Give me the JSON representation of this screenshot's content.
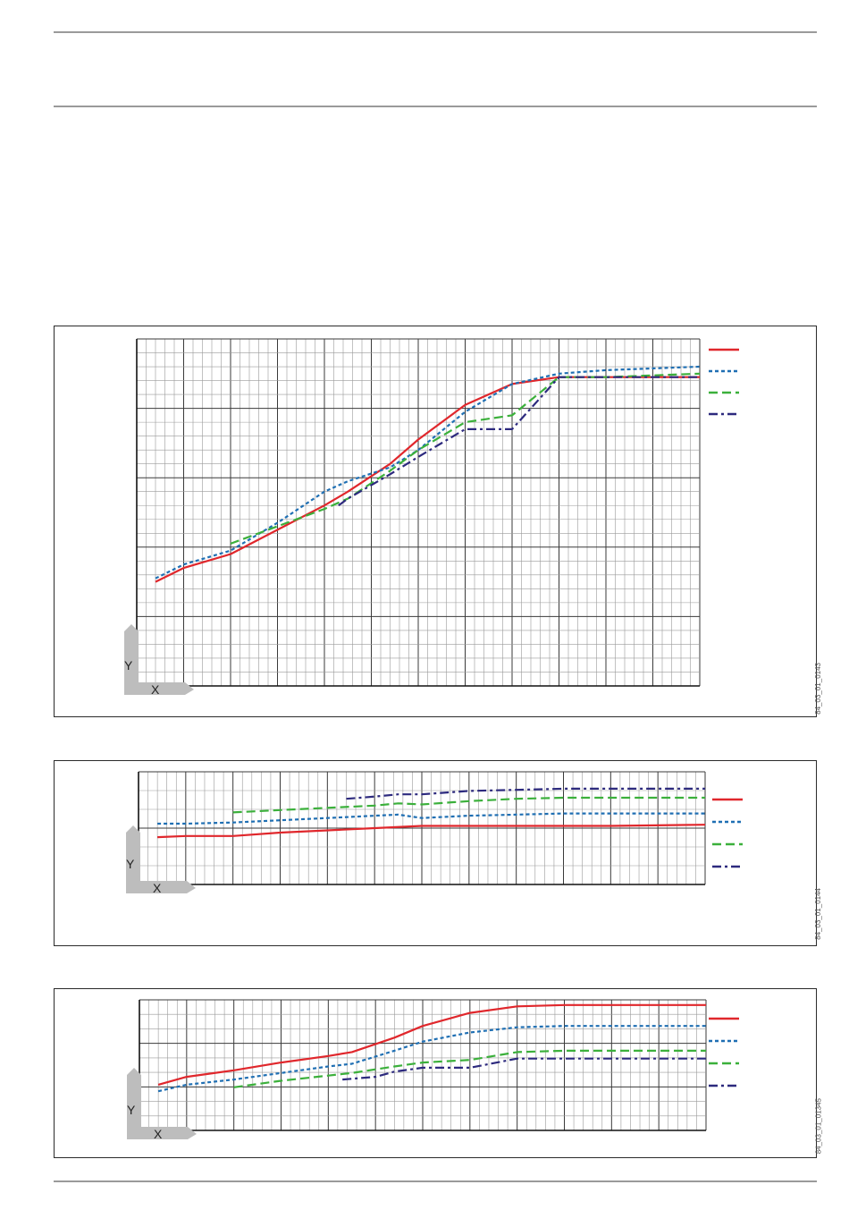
{
  "colors": {
    "series1": "#e0272c",
    "series2": "#1f6fb3",
    "series3": "#3bb03b",
    "series4": "#2d2a7e",
    "grid_minor": "#9a9a9a",
    "grid_major": "#3a3a3a",
    "axis_corner": "#bdbdbd"
  },
  "charts": [
    {
      "axis_x_letter": "X",
      "axis_y_letter": "Y",
      "figure_code": "84_03_01_0143",
      "chart_data": {
        "type": "line",
        "x_range": [
          0,
          12
        ],
        "y_range": [
          0,
          5
        ],
        "grid": true,
        "legend_placement": "right",
        "series": [
          {
            "style": "solid",
            "color_key": "series1",
            "x": [
              0.4,
              1.0,
              2.0,
              3.0,
              4.0,
              4.5,
              5.4,
              6.0,
              7.0,
              8.0,
              9.0,
              10.0,
              12.0
            ],
            "y": [
              1.5,
              1.7,
              1.9,
              2.25,
              2.6,
              2.8,
              3.2,
              3.55,
              4.05,
              4.35,
              4.45,
              4.45,
              4.45
            ]
          },
          {
            "style": "dotted",
            "color_key": "series2",
            "x": [
              0.4,
              1.0,
              2.0,
              3.0,
              4.0,
              4.5,
              5.4,
              6.0,
              7.0,
              8.0,
              9.0,
              10.0,
              12.0
            ],
            "y": [
              1.55,
              1.75,
              1.95,
              2.35,
              2.8,
              2.95,
              3.15,
              3.4,
              3.95,
              4.35,
              4.5,
              4.55,
              4.6
            ]
          },
          {
            "style": "dashed",
            "color_key": "series3",
            "x": [
              2.0,
              3.0,
              4.0,
              4.5,
              5.4,
              6.0,
              7.0,
              8.0,
              9.0,
              10.0,
              12.0
            ],
            "y": [
              2.05,
              2.3,
              2.55,
              2.7,
              3.1,
              3.4,
              3.8,
              3.9,
              4.45,
              4.45,
              4.5
            ]
          },
          {
            "style": "dashdot",
            "color_key": "series4",
            "x": [
              4.3,
              4.5,
              5.4,
              6.0,
              7.0,
              8.0,
              9.0,
              10.0,
              12.0
            ],
            "y": [
              2.6,
              2.7,
              3.05,
              3.3,
              3.7,
              3.7,
              4.45,
              4.45,
              4.45
            ]
          }
        ]
      }
    },
    {
      "axis_x_letter": "X",
      "axis_y_letter": "Y",
      "figure_code": "84_03_01_0144",
      "chart_data": {
        "type": "line",
        "x_range": [
          0,
          12
        ],
        "y_range": [
          0,
          5
        ],
        "grid": true,
        "legend_placement": "right",
        "series": [
          {
            "style": "solid",
            "color_key": "series1",
            "x": [
              0.4,
              1.0,
              2.0,
              3.0,
              4.0,
              5.0,
              6.0,
              7.0,
              8.0,
              9.0,
              10.0,
              12.0
            ],
            "y": [
              2.1,
              2.15,
              2.15,
              2.3,
              2.4,
              2.5,
              2.6,
              2.6,
              2.6,
              2.6,
              2.6,
              2.65
            ]
          },
          {
            "style": "dotted",
            "color_key": "series2",
            "x": [
              0.4,
              1.0,
              2.0,
              3.0,
              4.0,
              5.0,
              5.5,
              6.0,
              7.0,
              8.0,
              9.0,
              10.0,
              12.0
            ],
            "y": [
              2.7,
              2.7,
              2.75,
              2.85,
              2.95,
              3.05,
              3.1,
              2.95,
              3.05,
              3.1,
              3.15,
              3.15,
              3.15
            ]
          },
          {
            "style": "dashed",
            "color_key": "series3",
            "x": [
              2.0,
              3.0,
              4.0,
              5.0,
              5.5,
              6.0,
              7.0,
              8.0,
              9.0,
              10.0,
              12.0
            ],
            "y": [
              3.2,
              3.3,
              3.4,
              3.5,
              3.6,
              3.55,
              3.7,
              3.8,
              3.85,
              3.85,
              3.85
            ]
          },
          {
            "style": "dashdot",
            "color_key": "series4",
            "x": [
              4.4,
              5.0,
              5.5,
              6.0,
              7.0,
              8.0,
              9.0,
              10.0,
              12.0
            ],
            "y": [
              3.8,
              3.9,
              4.0,
              4.0,
              4.15,
              4.2,
              4.25,
              4.25,
              4.25
            ]
          }
        ]
      }
    },
    {
      "axis_x_letter": "X",
      "axis_y_letter": "Y",
      "figure_code": "84_03_01_01345",
      "chart_data": {
        "type": "line",
        "x_range": [
          0,
          12
        ],
        "y_range": [
          0,
          5
        ],
        "grid": true,
        "legend_placement": "right",
        "series": [
          {
            "style": "solid",
            "color_key": "series1",
            "x": [
              0.4,
              1.0,
              2.0,
              3.0,
              4.0,
              4.5,
              5.4,
              6.0,
              7.0,
              8.0,
              9.0,
              10.0,
              12.0
            ],
            "y": [
              1.75,
              2.05,
              2.3,
              2.6,
              2.85,
              3.0,
              3.55,
              4.0,
              4.5,
              4.75,
              4.8,
              4.8,
              4.8
            ]
          },
          {
            "style": "dotted",
            "color_key": "series2",
            "x": [
              0.4,
              1.0,
              2.0,
              3.0,
              4.0,
              4.5,
              5.4,
              6.0,
              7.0,
              8.0,
              9.0,
              10.0,
              12.0
            ],
            "y": [
              1.5,
              1.75,
              1.95,
              2.2,
              2.45,
              2.55,
              3.05,
              3.4,
              3.75,
              3.95,
              4.0,
              4.0,
              4.0
            ]
          },
          {
            "style": "dashed",
            "color_key": "series3",
            "x": [
              2.0,
              3.0,
              4.0,
              4.5,
              5.4,
              6.0,
              7.0,
              8.0,
              9.0,
              10.0,
              12.0
            ],
            "y": [
              1.65,
              1.9,
              2.1,
              2.2,
              2.45,
              2.6,
              2.7,
              3.0,
              3.05,
              3.05,
              3.05
            ]
          },
          {
            "style": "dashdot",
            "color_key": "series4",
            "x": [
              4.3,
              5.0,
              5.4,
              6.0,
              7.0,
              8.0,
              9.0,
              10.0,
              12.0
            ],
            "y": [
              1.95,
              2.05,
              2.25,
              2.4,
              2.4,
              2.75,
              2.75,
              2.75,
              2.75
            ]
          }
        ]
      }
    }
  ]
}
